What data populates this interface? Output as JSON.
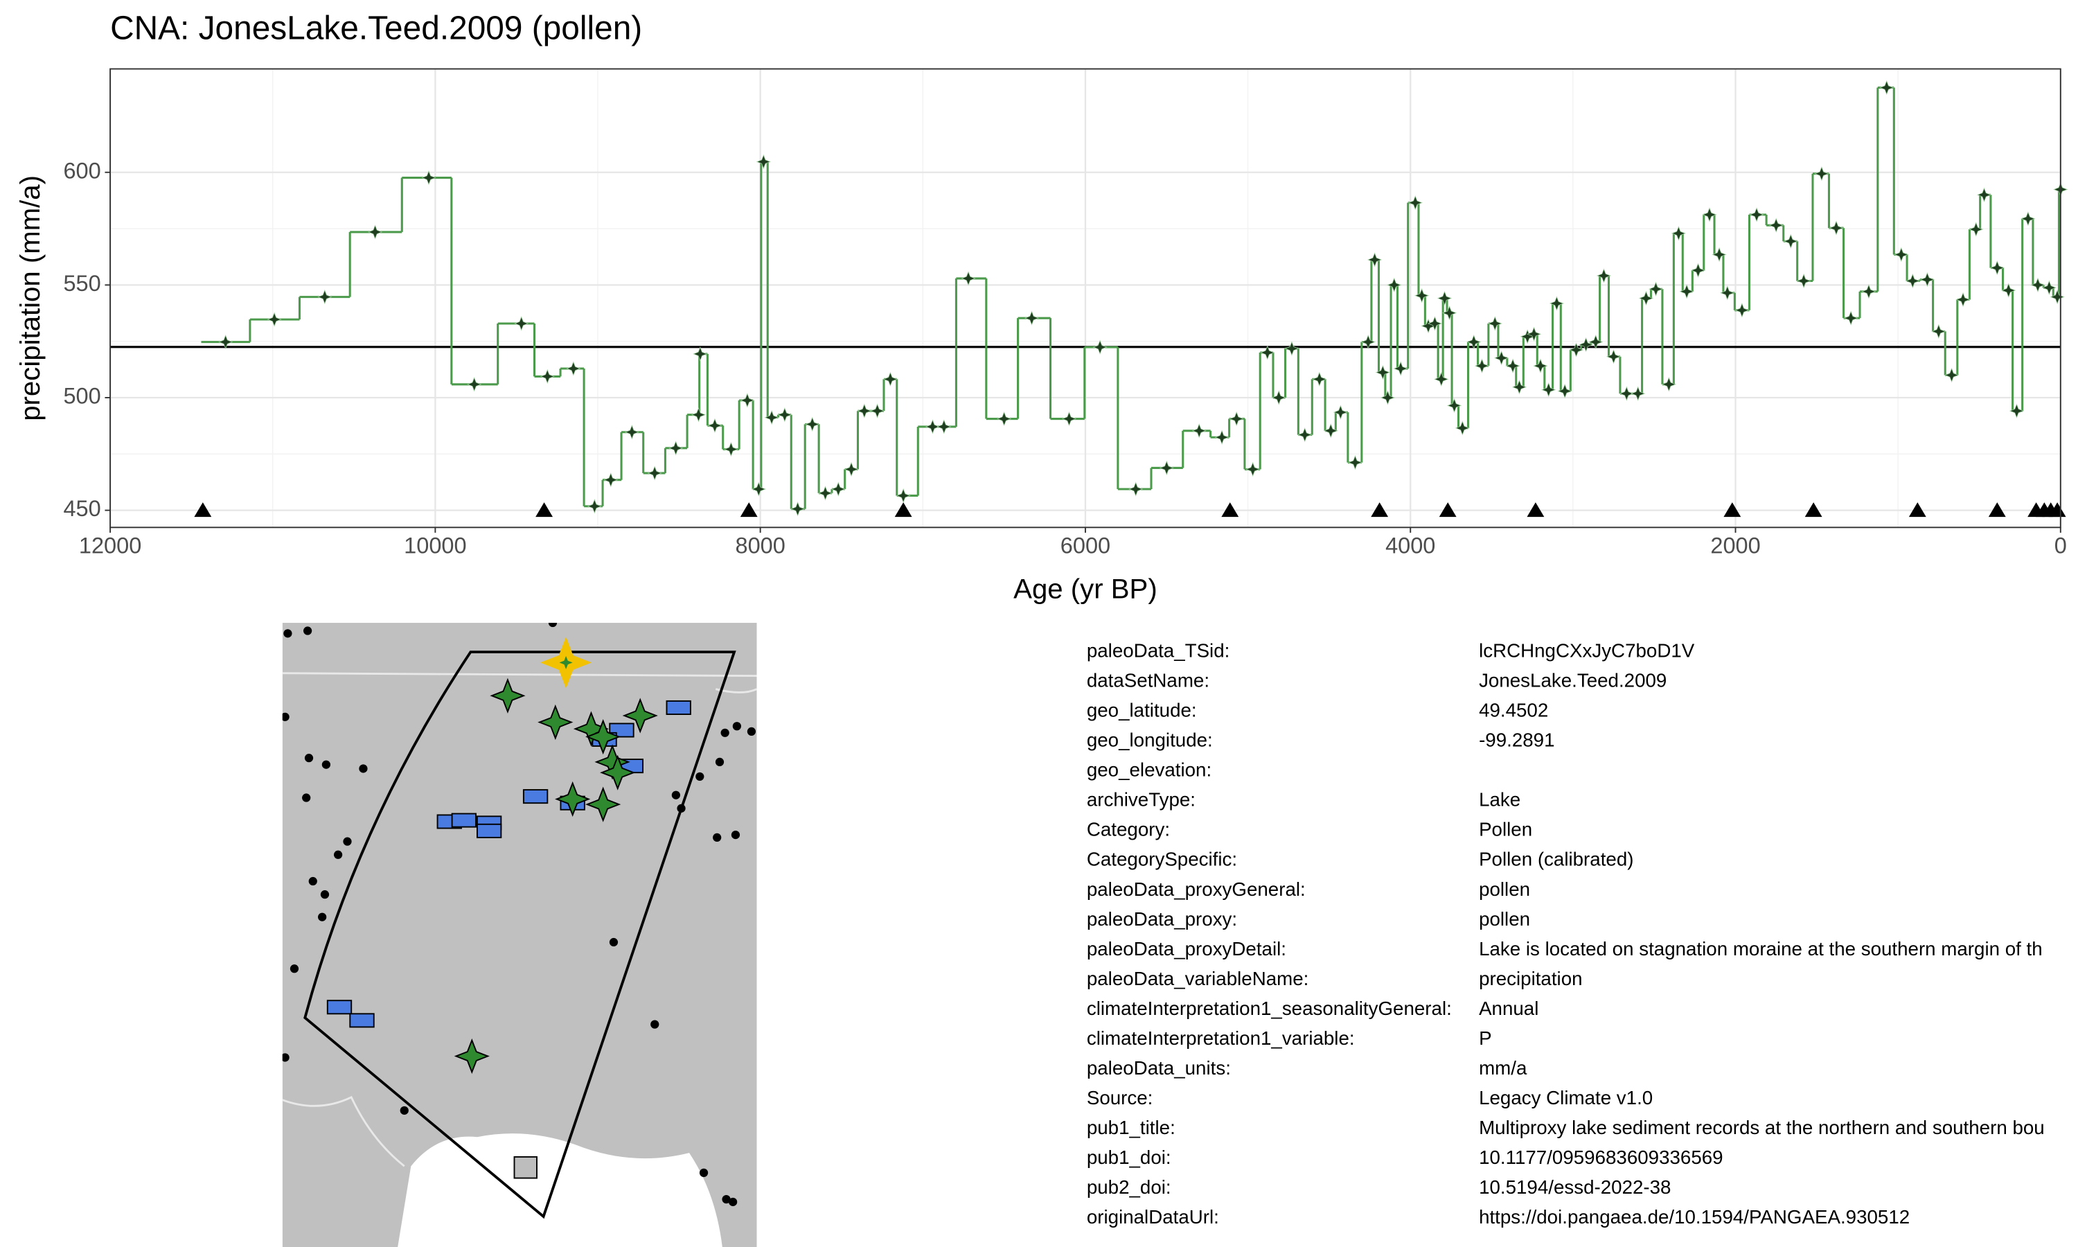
{
  "chart_data": {
    "type": "step",
    "title": "CNA: JonesLake.Teed.2009 (pollen)",
    "x_label": "Age (yr BP)",
    "y_label": "precipitation (mm/a)",
    "xlim": [
      12000,
      0
    ],
    "ylim": [
      442.4,
      645.9
    ],
    "xticks": [
      12000,
      10000,
      8000,
      6000,
      4000,
      2000,
      0
    ],
    "yticks": [
      450,
      500,
      550,
      600
    ],
    "grid": true,
    "mean_line": 522.5,
    "age_control_y": 450,
    "age_control_x": [
      11430,
      9330,
      8070,
      7120,
      5110,
      4190,
      3770,
      3230,
      2020,
      1520,
      880,
      390,
      150,
      100,
      60,
      20
    ],
    "series": [
      {
        "name": "precipitation",
        "color": "#4c9a4c",
        "marker_color": "#1f3d1f",
        "x": [
          11290,
          10990,
          10680,
          10370,
          10040,
          9760,
          9470,
          9310,
          9150,
          9020,
          8920,
          8790,
          8650,
          8520,
          8380,
          8370,
          8280,
          8180,
          8080,
          8010,
          7980,
          7930,
          7850,
          7770,
          7680,
          7600,
          7520,
          7440,
          7360,
          7280,
          7200,
          7120,
          6940,
          6870,
          6720,
          6500,
          6330,
          6100,
          5910,
          5690,
          5500,
          5300,
          5160,
          5070,
          4970,
          4880,
          4810,
          4730,
          4650,
          4560,
          4490,
          4430,
          4340,
          4260,
          4220,
          4170,
          4140,
          4100,
          4060,
          3970,
          3930,
          3890,
          3850,
          3810,
          3790,
          3760,
          3730,
          3680,
          3610,
          3560,
          3480,
          3440,
          3370,
          3330,
          3280,
          3240,
          3200,
          3150,
          3100,
          3050,
          2980,
          2920,
          2860,
          2810,
          2750,
          2670,
          2600,
          2550,
          2490,
          2410,
          2350,
          2300,
          2230,
          2160,
          2100,
          2050,
          1960,
          1870,
          1750,
          1660,
          1580,
          1470,
          1380,
          1290,
          1180,
          1070,
          980,
          910,
          820,
          750,
          670,
          600,
          520,
          470,
          390,
          320,
          270,
          200,
          140,
          70,
          20,
          0
        ],
        "values": [
          524.7,
          534.7,
          544.7,
          573.5,
          597.6,
          505.9,
          532.9,
          509.4,
          512.9,
          451.8,
          463.5,
          484.7,
          466.5,
          477.6,
          492.4,
          519.4,
          487.6,
          477.1,
          498.8,
          459.4,
          604.7,
          491.2,
          492.4,
          450.6,
          488.2,
          457.6,
          459.4,
          468.2,
          494.1,
          494.1,
          508.2,
          456.5,
          487.1,
          487.1,
          552.9,
          490.6,
          535.3,
          490.6,
          522.4,
          459.4,
          468.8,
          485.3,
          482.4,
          490.6,
          468.2,
          520.0,
          500.0,
          521.8,
          483.5,
          508.2,
          485.3,
          493.5,
          471.2,
          524.7,
          561.2,
          511.2,
          500.0,
          550.0,
          512.9,
          586.5,
          545.3,
          531.8,
          532.9,
          508.2,
          544.1,
          537.6,
          496.5,
          486.5,
          524.7,
          514.1,
          532.9,
          517.6,
          514.1,
          504.7,
          527.1,
          528.2,
          514.1,
          503.5,
          541.8,
          502.9,
          521.2,
          523.5,
          524.7,
          554.1,
          518.2,
          501.8,
          501.8,
          544.1,
          548.2,
          505.9,
          572.9,
          547.1,
          556.5,
          581.2,
          563.5,
          546.5,
          538.8,
          581.2,
          576.5,
          569.4,
          551.8,
          599.4,
          575.3,
          535.3,
          547.1,
          637.6,
          563.5,
          551.8,
          552.4,
          529.4,
          510.0,
          543.5,
          574.7,
          590.0,
          557.6,
          547.6,
          494.1,
          579.4,
          550.0,
          548.8,
          544.7,
          592.4
        ]
      }
    ]
  },
  "metadata": [
    {
      "key": "paleoData_TSid:",
      "value": "lcRCHngCXxJyC7boD1V"
    },
    {
      "key": "dataSetName:",
      "value": "JonesLake.Teed.2009"
    },
    {
      "key": "geo_latitude:",
      "value": "49.4502"
    },
    {
      "key": "geo_longitude:",
      "value": "-99.2891"
    },
    {
      "key": "geo_elevation:"
    },
    {
      "key": "archiveType:",
      "value": "Lake"
    },
    {
      "key": "Category:",
      "value": "Pollen"
    },
    {
      "key": "CategorySpecific:",
      "value": "Pollen (calibrated)"
    },
    {
      "key": "paleoData_proxyGeneral:",
      "value": "pollen"
    },
    {
      "key": "paleoData_proxy:",
      "value": "pollen"
    },
    {
      "key": "paleoData_proxyDetail:",
      "value": "Lake is located on stagnation moraine at the southern margin of th"
    },
    {
      "key": "paleoData_variableName:",
      "value": "precipitation"
    },
    {
      "key": "climateInterpretation1_seasonalityGeneral:",
      "value": "Annual"
    },
    {
      "key": "climateInterpretation1_variable:",
      "value": "P"
    },
    {
      "key": "paleoData_units:",
      "value": "mm/a"
    },
    {
      "key": "Source:",
      "value": "Legacy Climate v1.0"
    },
    {
      "key": "pub1_title:",
      "value": "Multiproxy lake sediment records at the northern and southern bou"
    },
    {
      "key": "pub1_doi:",
      "value": "10.1177/0959683609336569"
    },
    {
      "key": "pub2_doi:",
      "value": "10.5194/essd-2022-38"
    },
    {
      "key": "originalDataUrl:",
      "value": "https://doi.pangaea.de/10.1594/PANGAEA.930512"
    }
  ]
}
